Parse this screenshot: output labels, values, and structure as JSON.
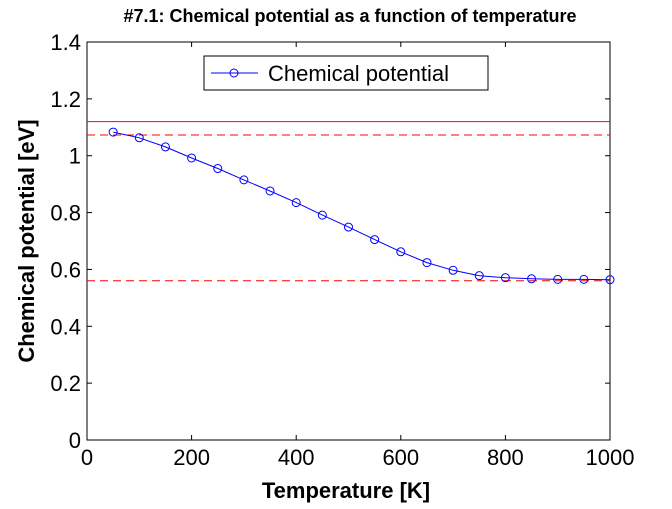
{
  "chart_data": {
    "type": "line",
    "title": "#7.1: Chemical potential as a function of temperature",
    "xlabel": "Temperature [K]",
    "ylabel": "Chemical potential [eV]",
    "xlim": [
      0,
      1000
    ],
    "ylim": [
      0,
      1.4
    ],
    "xticks": [
      "0",
      "200",
      "400",
      "600",
      "800",
      "1000"
    ],
    "yticks": [
      "0",
      "0.2",
      "0.4",
      "0.6",
      "0.8",
      "1",
      "1.2",
      "1.4"
    ],
    "grid": false,
    "legend_position": "top-center",
    "series": [
      {
        "name": "Chemical potential",
        "color": "#0000ff",
        "marker": "circle",
        "x": [
          50,
          100,
          150,
          200,
          250,
          300,
          350,
          400,
          450,
          500,
          550,
          600,
          650,
          700,
          750,
          800,
          850,
          900,
          950,
          1000
        ],
        "y": [
          1.083,
          1.063,
          1.031,
          0.992,
          0.955,
          0.915,
          0.876,
          0.835,
          0.791,
          0.749,
          0.705,
          0.662,
          0.624,
          0.597,
          0.578,
          0.571,
          0.567,
          0.565,
          0.565,
          0.564
        ]
      }
    ],
    "reference_lines": [
      {
        "y": 1.12,
        "color": "#ff0000",
        "style": "solid"
      },
      {
        "y": 1.073,
        "color": "#ff0000",
        "style": "dashed"
      },
      {
        "y": 0.56,
        "color": "#ff0000",
        "style": "dashed"
      }
    ]
  }
}
